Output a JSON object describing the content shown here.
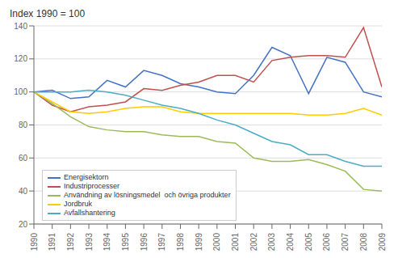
{
  "chart_data": {
    "type": "line",
    "title": "Index 1990 = 100",
    "x": [
      1990,
      1991,
      1992,
      1993,
      1994,
      1995,
      1996,
      1997,
      1998,
      1999,
      2000,
      2001,
      2002,
      2003,
      2004,
      2005,
      2006,
      2007,
      2008,
      2009
    ],
    "xlim": [
      1990,
      2009
    ],
    "xticks": [
      1990,
      1991,
      1992,
      1993,
      1994,
      1995,
      1996,
      1997,
      1998,
      1999,
      2000,
      2001,
      2002,
      2003,
      2004,
      2005,
      2006,
      2007,
      2008,
      2009
    ],
    "series": [
      {
        "name": "Energisektorn",
        "color": "#4472C4",
        "values": [
          100,
          101,
          96,
          97,
          107,
          103,
          113,
          110,
          105,
          103,
          100,
          99,
          110,
          127,
          122,
          99,
          121,
          118,
          100,
          97
        ]
      },
      {
        "name": "Industriprocesser",
        "color": "#C0504D",
        "values": [
          100,
          92,
          88,
          91,
          92,
          94,
          102,
          101,
          104,
          106,
          110,
          110,
          106,
          119,
          121,
          122,
          122,
          121,
          139,
          103
        ]
      },
      {
        "name": "Användning av lösningsmedel  och övriga produkter",
        "color": "#9BBB59",
        "values": [
          100,
          93,
          85,
          79,
          77,
          76,
          76,
          74,
          73,
          73,
          70,
          69,
          60,
          58,
          58,
          59,
          56,
          52,
          41,
          40
        ]
      },
      {
        "name": "Jordbruk",
        "color": "#FFCC00",
        "values": [
          100,
          94,
          88,
          87,
          88,
          90,
          91,
          91,
          88,
          87,
          87,
          87,
          87,
          87,
          87,
          86,
          86,
          87,
          90,
          86
        ]
      },
      {
        "name": "Avfallshantering",
        "color": "#4BACC6",
        "values": [
          100,
          100,
          100,
          101,
          100,
          98,
          95,
          92,
          90,
          87,
          83,
          80,
          75,
          70,
          68,
          62,
          62,
          58,
          55,
          55
        ]
      }
    ],
    "ylim": [
      20,
      140
    ],
    "yticks": [
      20,
      40,
      60,
      80,
      100,
      120,
      140
    ],
    "grid": true,
    "legend": "lower left"
  }
}
